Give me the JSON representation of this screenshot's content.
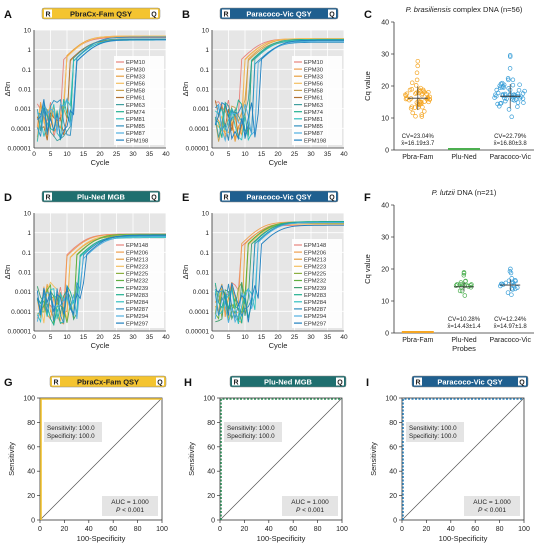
{
  "panels": {
    "A": {
      "letter": "A",
      "probe": "PbraCx-Fam QSY",
      "tag": "R",
      "tag2": "Q",
      "ylabel": "ΔRn",
      "xlabel": "Cycle",
      "yticks": [
        "10",
        "1",
        "0.1",
        "0.01",
        "0.001",
        "0.0001",
        "0.00001"
      ],
      "xticks": [
        "0",
        "5",
        "10",
        "15",
        "20",
        "25",
        "30",
        "35",
        "40"
      ],
      "legend": [
        "EPM10",
        "EPM30",
        "EPM33",
        "EPM56",
        "EPM58",
        "EPM61",
        "EPM63",
        "EPM74",
        "EPM81",
        "EPM85",
        "EPM87",
        "EPM198"
      ]
    },
    "B": {
      "letter": "B",
      "probe": "Paracoco-Vic QSY",
      "tag": "R",
      "tag2": "Q",
      "ylabel": "ΔRn",
      "xlabel": "Cycle",
      "yticks": [
        "10",
        "1",
        "0.1",
        "0.01",
        "0.001",
        "0.0001",
        "0.00001"
      ],
      "xticks": [
        "0",
        "5",
        "10",
        "15",
        "20",
        "25",
        "30",
        "35",
        "40"
      ],
      "legend": [
        "EPM10",
        "EPM30",
        "EPM33",
        "EPM56",
        "EPM58",
        "EPM61",
        "EPM63",
        "EPM74",
        "EPM81",
        "EPM85",
        "EPM87",
        "EPM198"
      ]
    },
    "C": {
      "letter": "C",
      "title_italic": "P. brasiliensis",
      "title_rest": " complex DNA (n=56)",
      "ylabel": "Cq value",
      "yticks": [
        "0",
        "10",
        "20",
        "30",
        "40"
      ],
      "categories": [
        "Pbra-Fam",
        "Plu-Ned",
        "Paracoco-Vic"
      ],
      "xlabel": "",
      "stats": [
        {
          "cv": "CV=23.04%",
          "mean": "x̄=16.19±3.7"
        },
        {
          "cv": "",
          "mean": ""
        },
        {
          "cv": "CV=22.79%",
          "mean": "x̄=16.80±3.8"
        }
      ]
    },
    "D": {
      "letter": "D",
      "probe": "Plu-Ned MGB",
      "tag": "R",
      "tag2": "Q",
      "ylabel": "ΔRn",
      "xlabel": "Cycle",
      "yticks": [
        "10",
        "1",
        "0.1",
        "0.01",
        "0.001",
        "0.0001",
        "0.00001"
      ],
      "xticks": [
        "0",
        "5",
        "10",
        "15",
        "20",
        "25",
        "30",
        "35",
        "40"
      ],
      "legend": [
        "EPM148",
        "EPM206",
        "EPM213",
        "EPM223",
        "EPM225",
        "EPM232",
        "EPM239",
        "EPM283",
        "EPM284",
        "EPM287",
        "EPM294",
        "EPM297"
      ]
    },
    "E": {
      "letter": "E",
      "probe": "Paracoco-Vic QSY",
      "tag": "R",
      "tag2": "Q",
      "ylabel": "ΔRn",
      "xlabel": "Cycle",
      "yticks": [
        "10",
        "1",
        "0.1",
        "0.01",
        "0.001",
        "0.0001",
        "0.00001"
      ],
      "xticks": [
        "0",
        "5",
        "10",
        "15",
        "20",
        "25",
        "30",
        "35",
        "40"
      ],
      "legend": [
        "EPM148",
        "EPM206",
        "EPM213",
        "EPM223",
        "EPM225",
        "EPM232",
        "EPM239",
        "EPM283",
        "EPM284",
        "EPM287",
        "EPM294",
        "EPM297"
      ]
    },
    "F": {
      "letter": "F",
      "title_italic": "P. lutzii",
      "title_rest": " DNA (n=21)",
      "ylabel": "Cq value",
      "yticks": [
        "0",
        "10",
        "20",
        "30",
        "40"
      ],
      "categories": [
        "Pbra-Fam",
        "Plu-Ned",
        "Paracoco-Vic"
      ],
      "xlabel": "Probes",
      "stats": [
        {
          "cv": "",
          "mean": ""
        },
        {
          "cv": "CV=10.28%",
          "mean": "x̄=14.43±1.4"
        },
        {
          "cv": "CV=12.24%",
          "mean": "x̄=14.97±1.8"
        }
      ]
    },
    "G": {
      "letter": "G",
      "probe": "PbraCx-Fam QSY",
      "tag": "R",
      "tag2": "Q",
      "ylabel": "Sensitivity",
      "xlabel": "100-Specificity",
      "ticks": [
        "0",
        "20",
        "40",
        "60",
        "80",
        "100"
      ],
      "sens": "Sensitivity: 100.0",
      "spec": "Specificity: 100.0",
      "auc": "AUC = 1.000",
      "p_italic": "P",
      "p_rest": " < 0.001"
    },
    "H": {
      "letter": "H",
      "probe": "Plu-Ned MGB",
      "tag": "R",
      "tag2": "Q",
      "ylabel": "Sensitivity",
      "xlabel": "100-Specificity",
      "ticks": [
        "0",
        "20",
        "40",
        "60",
        "80",
        "100"
      ],
      "sens": "Sensitivity: 100.0",
      "spec": "Specificity: 100.0",
      "auc": "AUC = 1.000",
      "p_italic": "P",
      "p_rest": " < 0.001"
    },
    "I": {
      "letter": "I",
      "probe": "Paracoco-Vic QSY",
      "tag": "R",
      "tag2": "Q",
      "ylabel": "Sensitivity",
      "xlabel": "100-Specificity",
      "ticks": [
        "0",
        "20",
        "40",
        "60",
        "80",
        "100"
      ],
      "sens": "Sensitivity: 100.0",
      "spec": "Specificity: 100.0",
      "auc": "AUC = 1.000",
      "p_italic": "P",
      "p_rest": " < 0.001"
    }
  },
  "colors": {
    "amp": [
      "#e8837c",
      "#f0a050",
      "#e8a040",
      "#f4c060",
      "#c8a050",
      "#b07030",
      "#40a0a0",
      "#20b090",
      "#30c0c0",
      "#3090c0",
      "#50b0e0",
      "#2080c0"
    ],
    "amp2": [
      "#e8837c",
      "#f0a050",
      "#e8a040",
      "#f4c060",
      "#8cb040",
      "#60b040",
      "#40a070",
      "#20b090",
      "#30c0c0",
      "#3090c0",
      "#50b0e0",
      "#2080c0"
    ],
    "fam_banner": "#f4c430",
    "ned_banner": "#1f6f6f",
    "vic_banner": "#1f5f8f",
    "fam_dot": "#f5a623",
    "vic_dot": "#3a9fd8",
    "ned_dot": "#4caf50",
    "roc_fam": "#f4c430",
    "roc_ned": "#2e8b57",
    "roc_vic": "#2a7fb8"
  },
  "chart_data": [
    {
      "panel": "A",
      "type": "line",
      "title": "PbraCx-Fam QSY",
      "xlabel": "Cycle",
      "ylabel": "ΔRn",
      "x_range": [
        0,
        40
      ],
      "y_range": [
        1e-05,
        10
      ],
      "y_scale": "log",
      "series_count": 12,
      "plateau_approx": 4,
      "threshold_cycle_range": [
        10,
        14
      ]
    },
    {
      "panel": "B",
      "type": "line",
      "title": "Paracoco-Vic QSY",
      "xlabel": "Cycle",
      "ylabel": "ΔRn",
      "x_range": [
        0,
        40
      ],
      "y_range": [
        1e-05,
        10
      ],
      "y_scale": "log",
      "series_count": 12,
      "plateau_approx": 3,
      "threshold_cycle_range": [
        10,
        15
      ]
    },
    {
      "panel": "C",
      "type": "scatter",
      "categories": [
        "Pbra-Fam",
        "Plu-Ned",
        "Paracoco-Vic"
      ],
      "ylabel": "Cq value",
      "ylim": [
        0,
        40
      ],
      "groups": [
        {
          "name": "Pbra-Fam",
          "n": 56,
          "mean": 16.19,
          "sd": 3.7,
          "cv": 23.04
        },
        {
          "name": "Plu-Ned",
          "n": 0
        },
        {
          "name": "Paracoco-Vic",
          "n": 56,
          "mean": 16.8,
          "sd": 3.8,
          "cv": 22.79
        }
      ]
    },
    {
      "panel": "D",
      "type": "line",
      "title": "Plu-Ned MGB",
      "xlabel": "Cycle",
      "ylabel": "ΔRn",
      "x_range": [
        0,
        40
      ],
      "y_range": [
        1e-05,
        10
      ],
      "y_scale": "log",
      "series_count": 12,
      "plateau_approx": 0.7,
      "threshold_cycle_range": [
        11,
        16
      ]
    },
    {
      "panel": "E",
      "type": "line",
      "title": "Paracoco-Vic QSY",
      "xlabel": "Cycle",
      "ylabel": "ΔRn",
      "x_range": [
        0,
        40
      ],
      "y_range": [
        1e-05,
        10
      ],
      "y_scale": "log",
      "series_count": 12,
      "plateau_approx": 3,
      "threshold_cycle_range": [
        10,
        15
      ]
    },
    {
      "panel": "F",
      "type": "scatter",
      "categories": [
        "Pbra-Fam",
        "Plu-Ned",
        "Paracoco-Vic"
      ],
      "xlabel": "Probes",
      "ylabel": "Cq value",
      "ylim": [
        0,
        40
      ],
      "groups": [
        {
          "name": "Pbra-Fam",
          "n": 0
        },
        {
          "name": "Plu-Ned",
          "n": 21,
          "mean": 14.43,
          "sd": 1.4,
          "cv": 10.28
        },
        {
          "name": "Paracoco-Vic",
          "n": 21,
          "mean": 14.97,
          "sd": 1.8,
          "cv": 12.24
        }
      ]
    },
    {
      "panel": "G",
      "type": "line",
      "title": "PbraCx-Fam QSY",
      "xlabel": "100-Specificity",
      "ylabel": "Sensitivity",
      "x_range": [
        0,
        100
      ],
      "y_range": [
        0,
        100
      ],
      "roc": [
        [
          0,
          0
        ],
        [
          0,
          100
        ],
        [
          100,
          100
        ]
      ],
      "auc": 1.0,
      "sensitivity": 100.0,
      "specificity": 100.0,
      "p": "< 0.001"
    },
    {
      "panel": "H",
      "type": "line",
      "title": "Plu-Ned MGB",
      "xlabel": "100-Specificity",
      "ylabel": "Sensitivity",
      "x_range": [
        0,
        100
      ],
      "y_range": [
        0,
        100
      ],
      "roc": [
        [
          0,
          0
        ],
        [
          0,
          100
        ],
        [
          100,
          100
        ]
      ],
      "auc": 1.0,
      "sensitivity": 100.0,
      "specificity": 100.0,
      "p": "< 0.001"
    },
    {
      "panel": "I",
      "type": "line",
      "title": "Paracoco-Vic QSY",
      "xlabel": "100-Specificity",
      "ylabel": "Sensitivity",
      "x_range": [
        0,
        100
      ],
      "y_range": [
        0,
        100
      ],
      "roc": [
        [
          0,
          0
        ],
        [
          0,
          100
        ],
        [
          100,
          100
        ]
      ],
      "auc": 1.0,
      "sensitivity": 100.0,
      "specificity": 100.0,
      "p": "< 0.001"
    }
  ]
}
